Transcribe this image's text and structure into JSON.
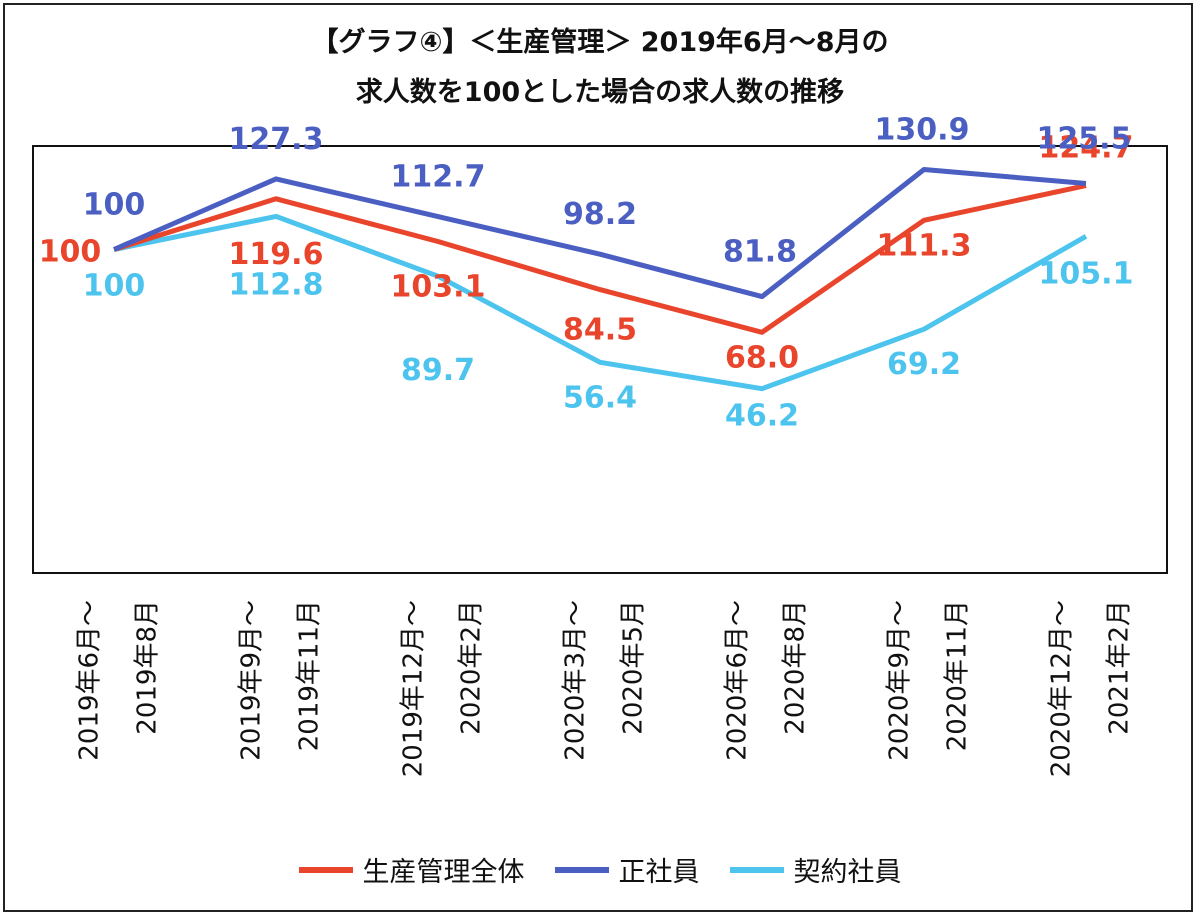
{
  "chart_data": {
    "type": "line",
    "title_lines": [
      "【グラフ④】＜生産管理＞ 2019年6月～8月の",
      "求人数を100とした場合の求人数の推移"
    ],
    "categories": [
      [
        "2019年6月～",
        "2019年8月"
      ],
      [
        "2019年9月～",
        "2019年11月"
      ],
      [
        "2019年12月～",
        "2020年2月"
      ],
      [
        "2020年3月～",
        "2020年5月"
      ],
      [
        "2020年6月～",
        "2020年8月"
      ],
      [
        "2020年9月～",
        "2020年11月"
      ],
      [
        "2020年12月～",
        "2021年2月"
      ]
    ],
    "series": [
      {
        "name": "生産管理全体",
        "color": "#e8452c",
        "values": [
          100,
          119.6,
          103.1,
          84.5,
          68.0,
          111.3,
          124.7
        ],
        "labels": [
          "100",
          "119.6",
          "103.1",
          "84.5",
          "68.0",
          "111.3",
          "124.7"
        ]
      },
      {
        "name": "正社員",
        "color": "#4a5fc1",
        "values": [
          100,
          127.3,
          112.7,
          98.2,
          81.8,
          130.9,
          125.5
        ],
        "labels": [
          "100",
          "127.3",
          "112.7",
          "98.2",
          "81.8",
          "130.9",
          "125.5"
        ]
      },
      {
        "name": "契約社員",
        "color": "#4dc4ee",
        "values": [
          100,
          112.8,
          89.7,
          56.4,
          46.2,
          69.2,
          105.1
        ],
        "labels": [
          "100",
          "112.8",
          "89.7",
          "56.4",
          "46.2",
          "69.2",
          "105.1"
        ]
      }
    ],
    "ylim": [
      -25,
      140
    ],
    "grid": false,
    "legend_position": "bottom"
  }
}
